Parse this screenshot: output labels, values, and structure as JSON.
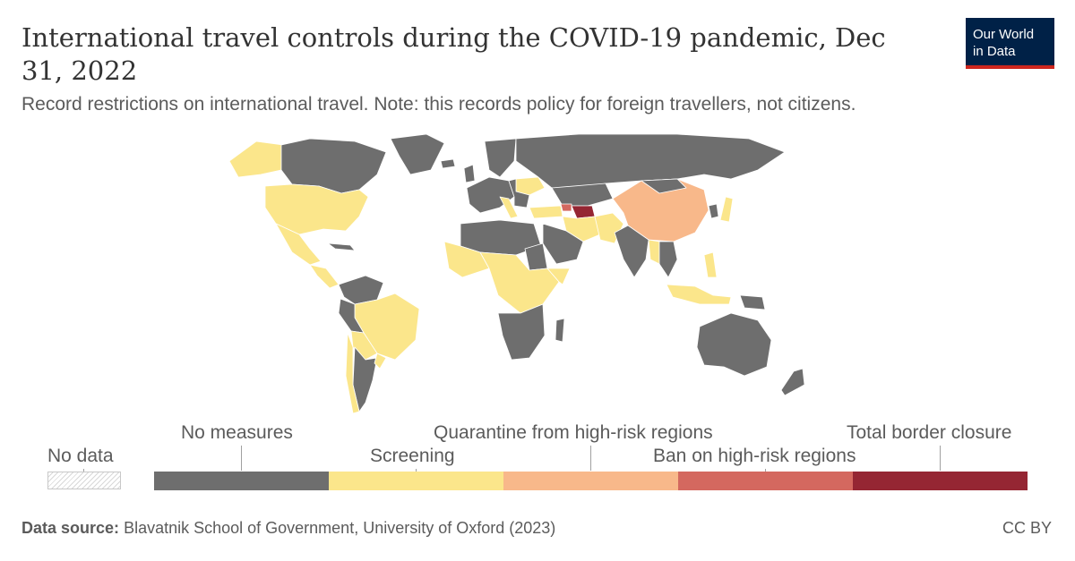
{
  "header": {
    "title": "International travel controls during the COVID-19 pandemic, Dec 31, 2022",
    "subtitle": "Record restrictions on international travel. Note: this records policy for foreign travellers, not citizens."
  },
  "logo": {
    "line1": "Our World",
    "line2": "in Data"
  },
  "legend": {
    "nodata_label": "No data",
    "categories": [
      {
        "label": "No measures",
        "color": "#6e6e6e"
      },
      {
        "label": "Screening",
        "color": "#fbe68b"
      },
      {
        "label": "Quarantine from high-risk regions",
        "color": "#f8b88a"
      },
      {
        "label": "Ban on high-risk regions",
        "color": "#d4685f"
      },
      {
        "label": "Total border closure",
        "color": "#952633"
      }
    ]
  },
  "map_colors": {
    "no_measures": "#6e6e6e",
    "screening": "#fbe68b",
    "quarantine": "#f8b88a",
    "ban": "#d4685f",
    "closure": "#952633",
    "border": "#ffffff"
  },
  "footer": {
    "source_label": "Data source:",
    "source_text": "Blavatnik School of Government, University of Oxford (2023)",
    "license": "CC BY"
  }
}
